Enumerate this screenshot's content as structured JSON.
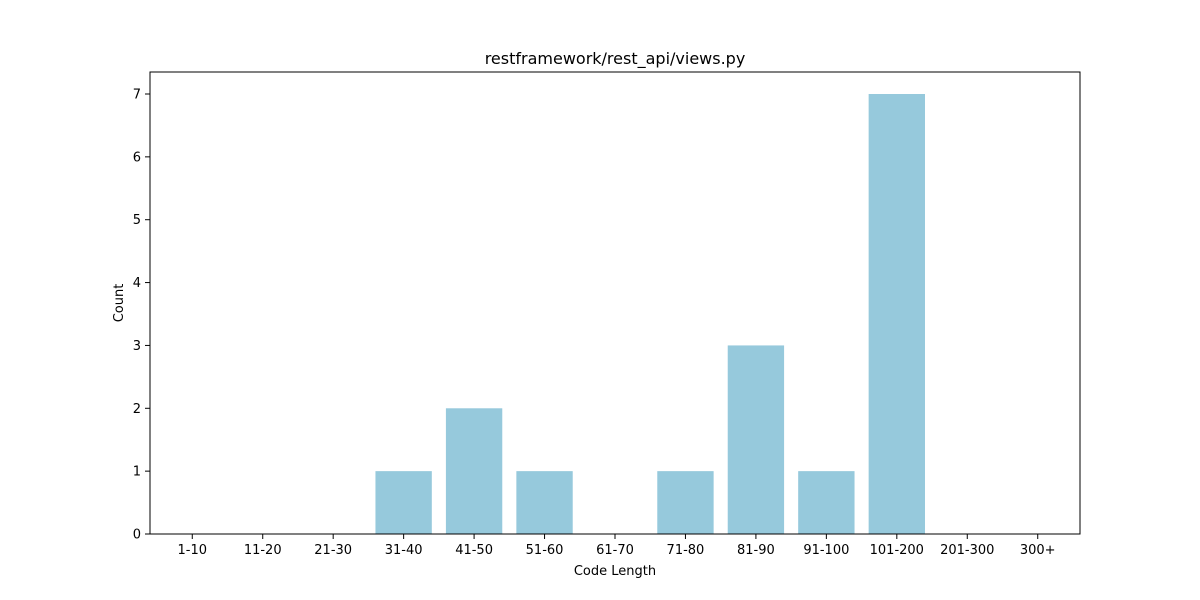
{
  "chart_data": {
    "type": "bar",
    "title": "restframework/rest_api/views.py",
    "xlabel": "Code Length",
    "ylabel": "Count",
    "categories": [
      "1-10",
      "11-20",
      "21-30",
      "31-40",
      "41-50",
      "51-60",
      "61-70",
      "71-80",
      "81-90",
      "91-100",
      "101-200",
      "201-300",
      "300+"
    ],
    "values": [
      0,
      0,
      0,
      1,
      2,
      1,
      0,
      1,
      3,
      1,
      7,
      0,
      0
    ],
    "ylim": [
      0,
      7.35
    ],
    "yticks": [
      0,
      1,
      2,
      3,
      4,
      5,
      6,
      7
    ],
    "grid": false,
    "legend": "none",
    "bar_color": "#96c9dc"
  }
}
